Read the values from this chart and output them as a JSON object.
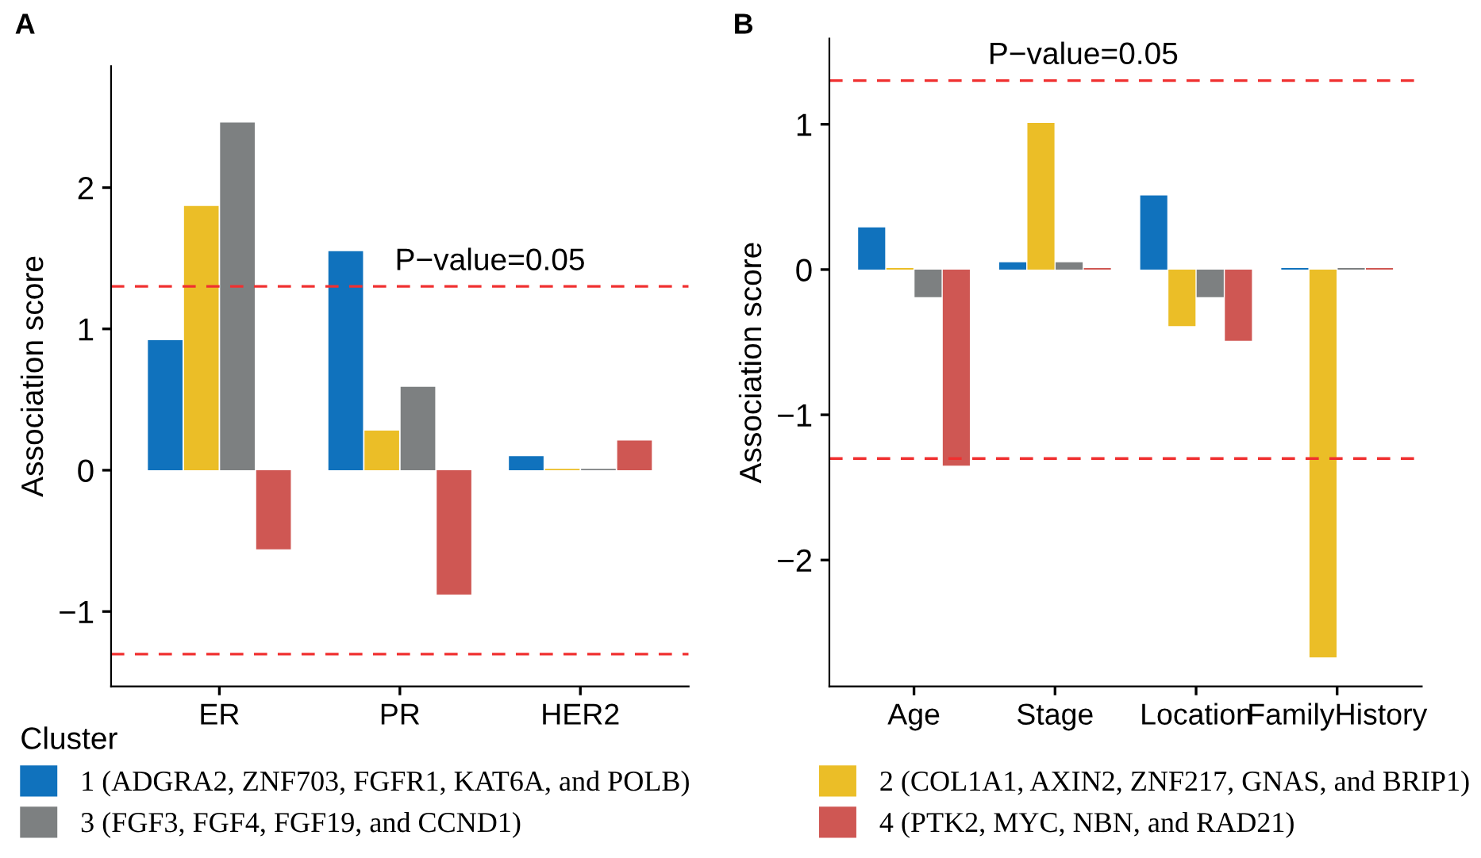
{
  "chart_data": [
    {
      "type": "bar",
      "categories": [
        "ER",
        "PR",
        "HER2"
      ],
      "ylabel": "Association score",
      "ylim": [
        -1.53,
        2.86
      ],
      "yticks": [
        -1,
        0,
        1,
        2
      ],
      "annotations": [
        "A",
        "P−value=0.05"
      ],
      "legend": "bottom",
      "legend_title": "Cluster",
      "grid": false,
      "series": [
        {
          "name": "1 (ADGRA2, ZNF703, FGFR1, KAT6A, and POLB)",
          "color": "#1072bd",
          "values": [
            0.92,
            1.55,
            0.1
          ]
        },
        {
          "name": "2 (COL1A1, AXIN2, ZNF217, GNAS, and BRIP1)",
          "color": "#ebbe27",
          "values": [
            1.87,
            0.28,
            0.01
          ]
        },
        {
          "name": "3 (FGF3, FGF4, FGF19, and CCND1)",
          "color": "#7d8081",
          "values": [
            2.46,
            0.59,
            0.01
          ]
        },
        {
          "name": "4 (PTK2, MYC, NBN, and RAD21)",
          "color": "#cf5753",
          "values": [
            -0.56,
            -0.88,
            0.21
          ]
        }
      ],
      "ref_lines": [
        {
          "axis": "y",
          "value": 1.301,
          "color": "#f03030",
          "line_style": "dashed"
        },
        {
          "axis": "y",
          "value": -1.301,
          "color": "#f03030",
          "line_style": "dashed"
        }
      ]
    },
    {
      "type": "bar",
      "categories": [
        "Age",
        "Stage",
        "Location",
        "FamilyHistory"
      ],
      "ylabel": "Association score",
      "ylim": [
        -2.87,
        1.59
      ],
      "yticks": [
        -2,
        -1,
        0,
        1
      ],
      "annotations": [
        "B",
        "P−value=0.05"
      ],
      "grid": false,
      "series": [
        {
          "color": "#1072bd",
          "values": [
            0.29,
            0.05,
            0.51,
            0.01
          ]
        },
        {
          "color": "#ebbe27",
          "values": [
            0.01,
            1.01,
            -0.39,
            -2.67
          ]
        },
        {
          "color": "#7d8081",
          "values": [
            -0.19,
            0.05,
            -0.19,
            0.01
          ]
        },
        {
          "color": "#cf5753",
          "values": [
            -1.35,
            0.01,
            -0.49,
            0.01
          ]
        }
      ],
      "ref_lines": [
        {
          "axis": "y",
          "value": 1.301,
          "color": "#f03030",
          "line_style": "dashed"
        },
        {
          "axis": "y",
          "value": -1.301,
          "color": "#f03030",
          "line_style": "dashed"
        }
      ]
    }
  ]
}
